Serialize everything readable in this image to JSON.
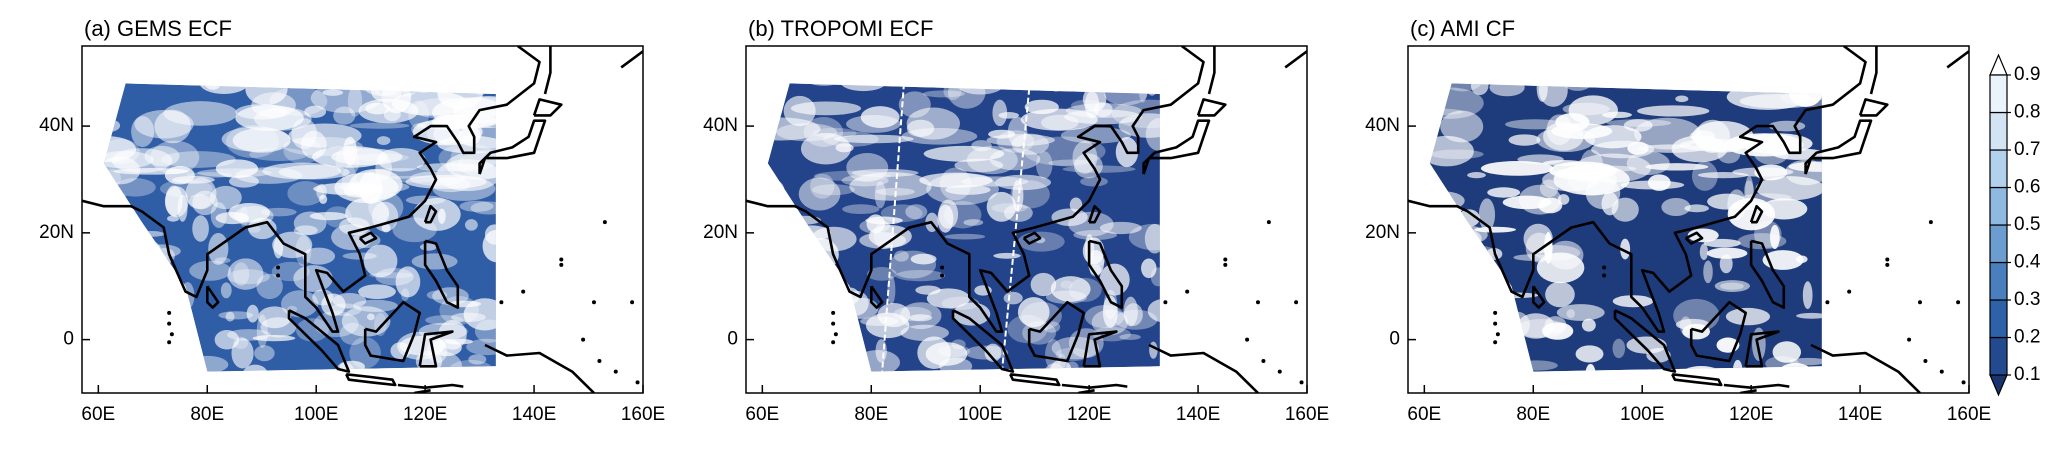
{
  "panels": [
    {
      "title": "(a) GEMS ECF"
    },
    {
      "title": "(b) TROPOMI ECF"
    },
    {
      "title": "(c) AMI CF"
    }
  ],
  "xlim": [
    57,
    160
  ],
  "ylim": [
    -10,
    55
  ],
  "xticks": [
    {
      "value": 60,
      "label": "60E"
    },
    {
      "value": 80,
      "label": "80E"
    },
    {
      "value": 100,
      "label": "100E"
    },
    {
      "value": 120,
      "label": "120E"
    },
    {
      "value": 140,
      "label": "140E"
    },
    {
      "value": 160,
      "label": "160E"
    }
  ],
  "yticks": [
    {
      "value": 0,
      "label": "0"
    },
    {
      "value": 20,
      "label": "20N"
    },
    {
      "value": 40,
      "label": "40N"
    }
  ],
  "colorbar": {
    "ticks": [
      0.1,
      0.2,
      0.3,
      0.4,
      0.5,
      0.6,
      0.7,
      0.8,
      0.9
    ],
    "colors": [
      "#1b3470",
      "#234a8e",
      "#2e62a8",
      "#4a7fbd",
      "#6b9dd0",
      "#8fb9e0",
      "#b2d1ec",
      "#d2e4f4",
      "#eaf2fa",
      "#ffffff"
    ]
  }
}
